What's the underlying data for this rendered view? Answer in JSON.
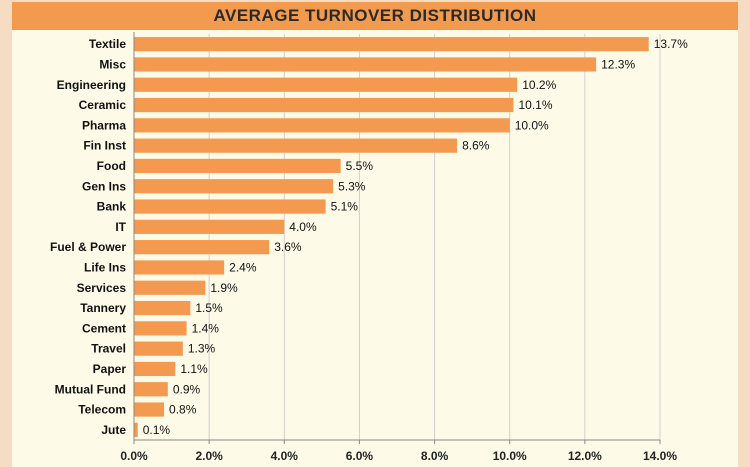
{
  "chart_data": {
    "type": "bar",
    "orientation": "horizontal",
    "title": "AVERAGE TURNOVER DISTRIBUTION",
    "categories": [
      "Textile",
      "Misc",
      "Engineering",
      "Ceramic",
      "Pharma",
      "Fin Inst",
      "Food",
      "Gen Ins",
      "Bank",
      "IT",
      "Fuel & Power",
      "Life Ins",
      "Services",
      "Tannery",
      "Cement",
      "Travel",
      "Paper",
      "Mutual Fund",
      "Telecom",
      "Jute"
    ],
    "values": [
      13.7,
      12.3,
      10.2,
      10.1,
      10.0,
      8.6,
      5.5,
      5.3,
      5.1,
      4.0,
      3.6,
      2.4,
      1.9,
      1.5,
      1.4,
      1.3,
      1.1,
      0.9,
      0.8,
      0.1
    ],
    "value_labels": [
      "13.7%",
      "12.3%",
      "10.2%",
      "10.1%",
      "10.0%",
      "8.6%",
      "5.5%",
      "5.3%",
      "5.1%",
      "4.0%",
      "3.6%",
      "2.4%",
      "1.9%",
      "1.5%",
      "1.4%",
      "1.3%",
      "1.1%",
      "0.9%",
      "0.8%",
      "0.1%"
    ],
    "xlim": [
      0,
      14
    ],
    "x_ticks": [
      0,
      2,
      4,
      6,
      8,
      10,
      12,
      14
    ],
    "x_tick_labels": [
      "0.0%",
      "2.0%",
      "4.0%",
      "6.0%",
      "8.0%",
      "10.0%",
      "12.0%",
      "14.0%"
    ],
    "xlabel": "",
    "ylabel": "",
    "grid": true,
    "bar_color": "#f39a50",
    "title_bar_color": "#f29a4e",
    "legend": "none"
  }
}
